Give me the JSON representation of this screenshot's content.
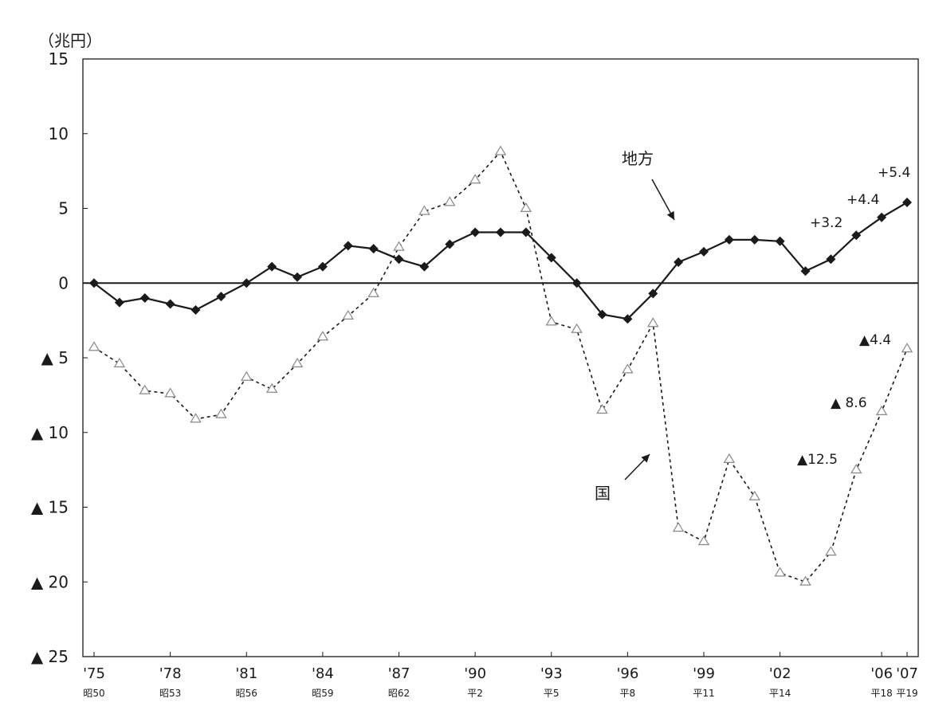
{
  "chart_data": {
    "type": "line",
    "unit_label": "（兆円）",
    "ylim": [
      -25,
      15
    ],
    "y_ticks": [
      {
        "value": 15,
        "label": "15"
      },
      {
        "value": 10,
        "label": "10"
      },
      {
        "value": 5,
        "label": "5"
      },
      {
        "value": 0,
        "label": "0"
      },
      {
        "value": -5,
        "label": "▲ 5"
      },
      {
        "value": -10,
        "label": "▲ 10"
      },
      {
        "value": -15,
        "label": "▲ 15"
      },
      {
        "value": -20,
        "label": "▲ 20"
      },
      {
        "value": -25,
        "label": "▲ 25"
      }
    ],
    "x_ticks": [
      {
        "year": 1975,
        "label": "'75",
        "sub": "昭50"
      },
      {
        "year": 1978,
        "label": "'78",
        "sub": "昭53"
      },
      {
        "year": 1981,
        "label": "'81",
        "sub": "昭56"
      },
      {
        "year": 1984,
        "label": "'84",
        "sub": "昭59"
      },
      {
        "year": 1987,
        "label": "'87",
        "sub": "昭62"
      },
      {
        "year": 1990,
        "label": "'90",
        "sub": "平2"
      },
      {
        "year": 1993,
        "label": "'93",
        "sub": "平5"
      },
      {
        "year": 1996,
        "label": "'96",
        "sub": "平8"
      },
      {
        "year": 1999,
        "label": "'99",
        "sub": "平11"
      },
      {
        "year": 2002,
        "label": "'02",
        "sub": "平14"
      },
      {
        "year": 2006,
        "label": "'06",
        "sub": "平18"
      },
      {
        "year": 2007,
        "label": "'07",
        "sub": "平19"
      }
    ],
    "x": [
      1975,
      1976,
      1977,
      1978,
      1979,
      1980,
      1981,
      1982,
      1983,
      1984,
      1985,
      1986,
      1987,
      1988,
      1989,
      1990,
      1991,
      1992,
      1993,
      1994,
      1995,
      1996,
      1997,
      1998,
      1999,
      2000,
      2001,
      2002,
      2003,
      2004,
      2005,
      2006,
      2007
    ],
    "series": [
      {
        "name": "地方",
        "style": "solid-diamond",
        "color": "#1a1a1a",
        "values": [
          0.0,
          -1.3,
          -1.0,
          -1.4,
          -1.8,
          -0.9,
          0.0,
          1.1,
          0.4,
          1.1,
          2.5,
          2.3,
          1.6,
          1.1,
          2.6,
          3.4,
          3.4,
          3.4,
          1.7,
          0.0,
          -2.1,
          -2.4,
          -0.7,
          1.4,
          2.1,
          2.9,
          2.9,
          2.8,
          0.8,
          1.6,
          3.2,
          4.4,
          5.4
        ]
      },
      {
        "name": "国",
        "style": "dotted-triangle",
        "color": "#1a1a1a",
        "values": [
          -4.3,
          -5.4,
          -7.2,
          -7.4,
          -9.1,
          -8.8,
          -6.3,
          -7.1,
          -5.4,
          -3.6,
          -2.2,
          -0.7,
          2.4,
          4.8,
          5.4,
          6.9,
          8.8,
          5.0,
          -2.6,
          -3.1,
          -8.5,
          -5.8,
          -2.7,
          -16.4,
          -17.3,
          -11.8,
          -14.3,
          -19.4,
          -20.0,
          -18.0,
          -12.5,
          -8.6,
          -4.4
        ]
      }
    ],
    "annotations": [
      {
        "text": "+5.4"
      },
      {
        "text": "+4.4"
      },
      {
        "text": "+3.2"
      },
      {
        "text": "▲4.4"
      },
      {
        "text": "▲ 8.6"
      },
      {
        "text": "▲12.5"
      }
    ],
    "grid": false,
    "legend": "inline-labels"
  }
}
